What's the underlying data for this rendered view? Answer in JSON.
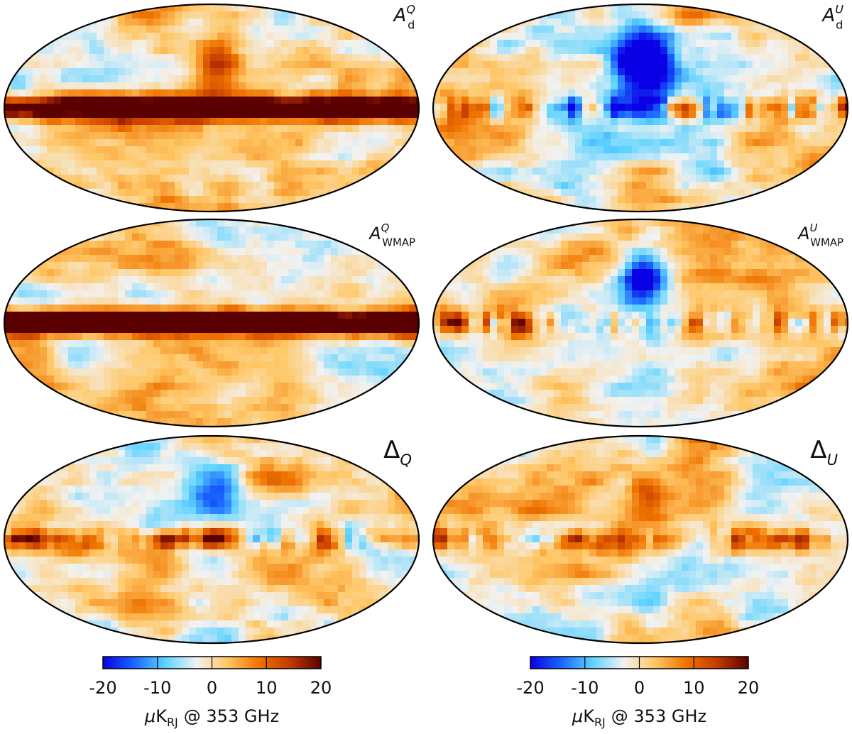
{
  "chart_data": [
    {
      "type": "heatmap",
      "projection": "mollweide",
      "panel": "top-left",
      "label_main": "A",
      "label_sub": "d",
      "label_sup": "Q"
    },
    {
      "type": "heatmap",
      "projection": "mollweide",
      "panel": "top-right",
      "label_main": "A",
      "label_sub": "d",
      "label_sup": "U"
    },
    {
      "type": "heatmap",
      "projection": "mollweide",
      "panel": "middle-left",
      "label_main": "A",
      "label_sub": "WMAP",
      "label_sup": "Q"
    },
    {
      "type": "heatmap",
      "projection": "mollweide",
      "panel": "middle-right",
      "label_main": "A",
      "label_sub": "WMAP",
      "label_sup": "U"
    },
    {
      "type": "heatmap",
      "projection": "mollweide",
      "panel": "bottom-left",
      "label_main": "Δ",
      "label_sub": "Q",
      "label_sup": ""
    },
    {
      "type": "heatmap",
      "projection": "mollweide",
      "panel": "bottom-right",
      "label_main": "Δ",
      "label_sub": "U",
      "label_sup": ""
    }
  ],
  "colorbar": {
    "ticks": [
      "-20",
      "-10",
      "0",
      "10",
      "20"
    ],
    "tick_values": [
      -20,
      -10,
      0,
      10,
      20
    ],
    "range": [
      -20,
      20
    ],
    "unit_mu": "μ",
    "unit_main": "K",
    "unit_sub": "RJ",
    "unit_rest": "@ 353 GHz",
    "colors": [
      "#0a00e6",
      "#1a66ff",
      "#5fd3ff",
      "#f2f2f2",
      "#ffc766",
      "#f07400",
      "#c43a00",
      "#5a0000"
    ]
  }
}
